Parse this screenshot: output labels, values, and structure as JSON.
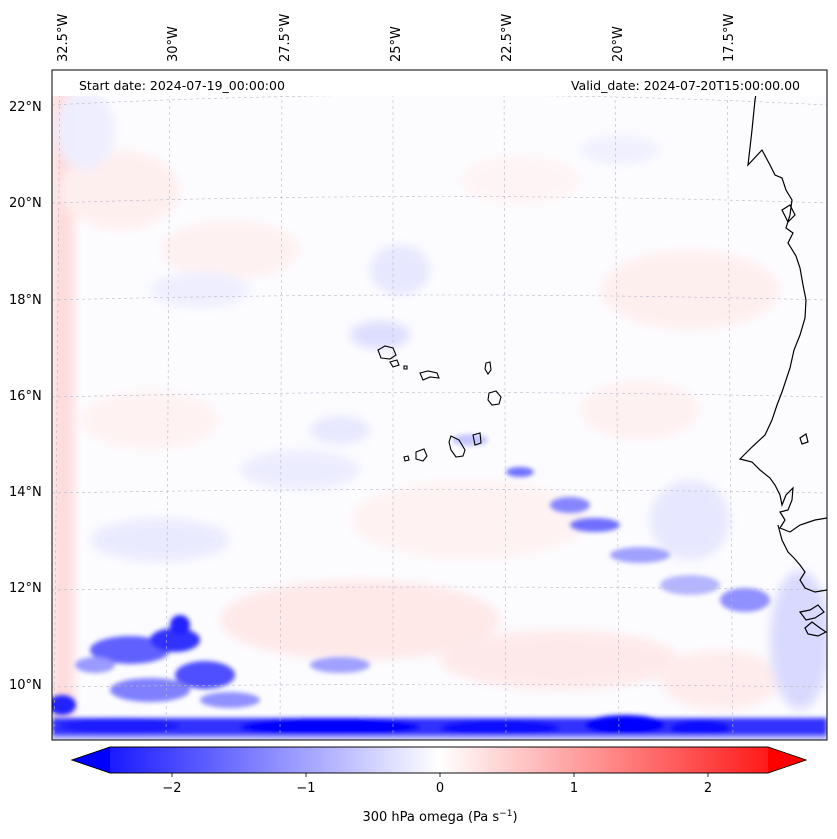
{
  "header": {
    "start_date": "Start date: 2024-07-19_00:00:00",
    "valid_date": "Valid_date: 2024-07-20T15:00:00.00"
  },
  "map": {
    "lon_labels": [
      "32.5°W",
      "30°W",
      "27.5°W",
      "25°W",
      "22.5°W",
      "20°W",
      "17.5°W"
    ],
    "lat_labels": [
      "22°N",
      "20°N",
      "18°N",
      "16°N",
      "14°N",
      "12°N",
      "10°N"
    ]
  },
  "colorbar": {
    "ticks": [
      "−2",
      "−1",
      "0",
      "1",
      "2"
    ],
    "label": "300 hPa omega (Pa s",
    "label_sup": "−1",
    "label_end": ")",
    "color_min": "#0000ff",
    "color_mid": "#ffffff",
    "color_max": "#ff0000"
  }
}
